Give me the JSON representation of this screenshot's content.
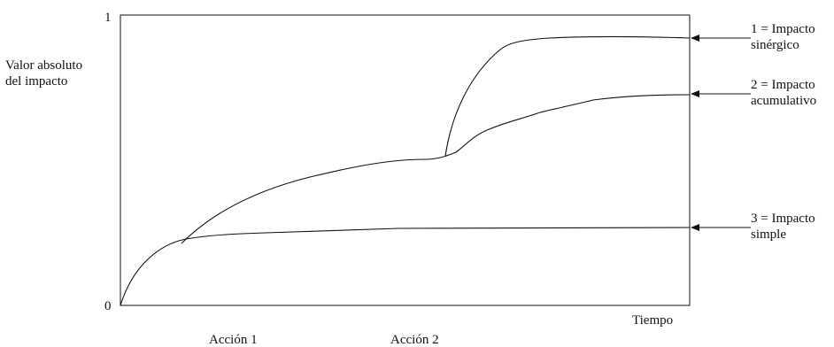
{
  "y_axis": {
    "label_line1": "Valor absoluto",
    "label_line2": "del impacto",
    "tick_top": "1",
    "tick_bottom": "0"
  },
  "x_axis": {
    "label": "Tiempo",
    "action1": "Acción 1",
    "action2": "Acción 2"
  },
  "legend": {
    "synergic_line1": "1 = Impacto",
    "synergic_line2": "sinérgico",
    "cumulative_line1": "2 = Impacto",
    "cumulative_line2": "acumulativo",
    "simple_line1": "3 = Impacto",
    "simple_line2": "simple"
  },
  "colors": {
    "line": "#111111",
    "background": "#ffffff"
  }
}
